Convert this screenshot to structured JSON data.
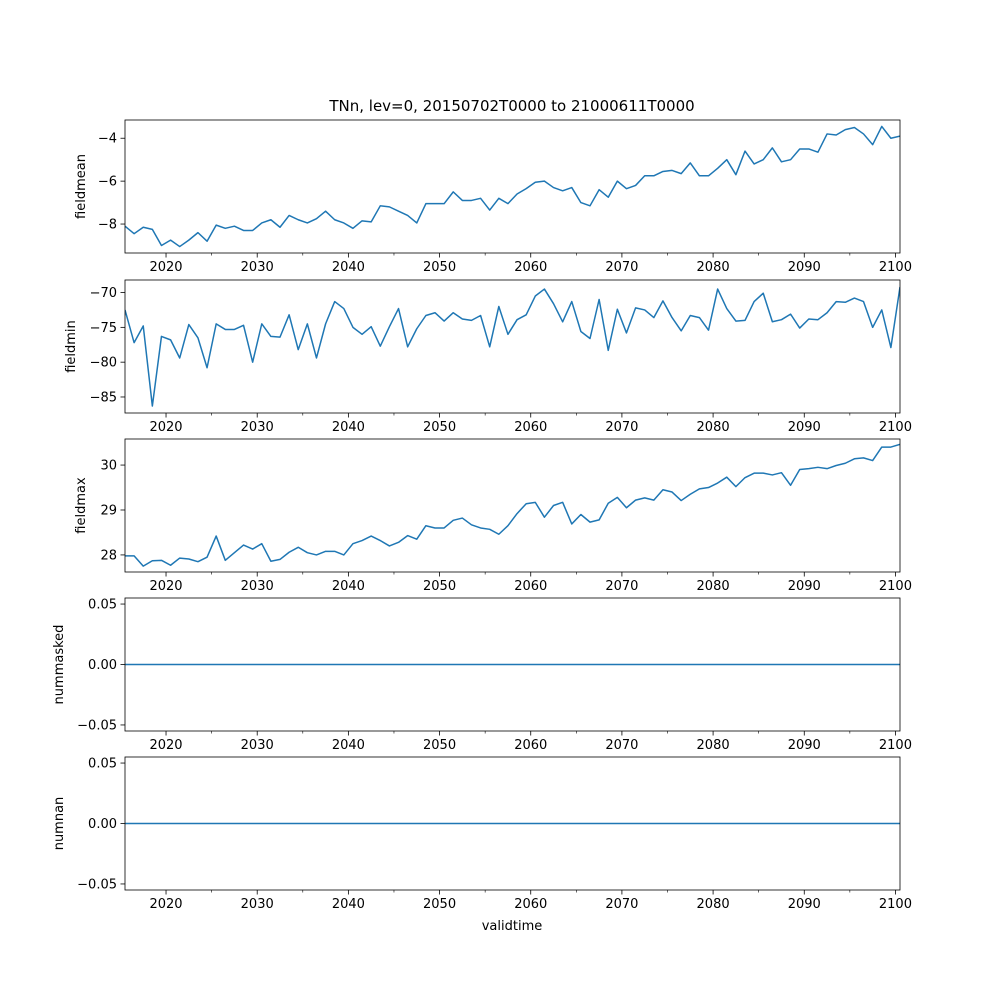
{
  "figure_title": "TNn, lev=0, 20150702T0000 to 21000611T0000",
  "xlabel": "validtime",
  "chart_data": [
    {
      "type": "line",
      "name": "fieldmean",
      "ylabel": "fieldmean",
      "color": "#1f77b4",
      "xlim": [
        2015.5,
        2100.5
      ],
      "ylim": [
        -9.35,
        -3.15
      ],
      "xticks": [
        2020,
        2030,
        2040,
        2050,
        2060,
        2070,
        2080,
        2090,
        2100
      ],
      "xticklabels": [
        "2020",
        "2030",
        "2040",
        "2050",
        "2060",
        "2070",
        "2080",
        "2090",
        "2100"
      ],
      "yticks": [
        -8,
        -6,
        -4
      ],
      "yticklabels": [
        "−8",
        "−6",
        "−4"
      ],
      "x": [
        2015.5,
        2016.5,
        2017.5,
        2018.5,
        2019.5,
        2020.5,
        2021.5,
        2022.5,
        2023.5,
        2024.5,
        2025.5,
        2026.5,
        2027.5,
        2028.5,
        2029.5,
        2030.5,
        2031.5,
        2032.5,
        2033.5,
        2034.5,
        2035.5,
        2036.5,
        2037.5,
        2038.5,
        2039.5,
        2040.5,
        2041.5,
        2042.5,
        2043.5,
        2044.5,
        2045.5,
        2046.5,
        2047.5,
        2048.5,
        2049.5,
        2050.5,
        2051.5,
        2052.5,
        2053.5,
        2054.5,
        2055.5,
        2056.5,
        2057.5,
        2058.5,
        2059.5,
        2060.5,
        2061.5,
        2062.5,
        2063.5,
        2064.5,
        2065.5,
        2066.5,
        2067.5,
        2068.5,
        2069.5,
        2070.5,
        2071.5,
        2072.5,
        2073.5,
        2074.5,
        2075.5,
        2076.5,
        2077.5,
        2078.5,
        2079.5,
        2080.5,
        2081.5,
        2082.5,
        2083.5,
        2084.5,
        2085.5,
        2086.5,
        2087.5,
        2088.5,
        2089.5,
        2090.5,
        2091.5,
        2092.5,
        2093.5,
        2094.5,
        2095.5,
        2096.5,
        2097.5,
        2098.5,
        2099.5,
        2100.5
      ],
      "values": [
        -8.1,
        -8.45,
        -8.15,
        -8.25,
        -9.0,
        -8.75,
        -9.05,
        -8.75,
        -8.4,
        -8.8,
        -8.05,
        -8.2,
        -8.1,
        -8.3,
        -8.3,
        -7.95,
        -7.8,
        -8.15,
        -7.6,
        -7.8,
        -7.95,
        -7.75,
        -7.4,
        -7.8,
        -7.95,
        -8.2,
        -7.85,
        -7.9,
        -7.15,
        -7.2,
        -7.4,
        -7.6,
        -7.95,
        -7.05,
        -7.05,
        -7.05,
        -6.5,
        -6.9,
        -6.9,
        -6.8,
        -7.35,
        -6.8,
        -7.05,
        -6.6,
        -6.35,
        -6.05,
        -6.0,
        -6.3,
        -6.45,
        -6.3,
        -7.0,
        -7.15,
        -6.4,
        -6.75,
        -6.0,
        -6.35,
        -6.2,
        -5.75,
        -5.75,
        -5.55,
        -5.5,
        -5.65,
        -5.15,
        -5.75,
        -5.75,
        -5.4,
        -5.0,
        -5.7,
        -4.6,
        -5.2,
        -5.0,
        -4.45,
        -5.1,
        -5.0,
        -4.5,
        -4.5,
        -4.65,
        -3.8,
        -3.85,
        -3.6,
        -3.5,
        -3.8,
        -4.3,
        -3.45,
        -4.0,
        -3.9
      ]
    },
    {
      "type": "line",
      "name": "fieldmin",
      "ylabel": "fieldmin",
      "color": "#1f77b4",
      "xlim": [
        2015.5,
        2100.5
      ],
      "ylim": [
        -87.3,
        -68.2
      ],
      "xticks": [
        2020,
        2030,
        2040,
        2050,
        2060,
        2070,
        2080,
        2090,
        2100
      ],
      "xticklabels": [
        "2020",
        "2030",
        "2040",
        "2050",
        "2060",
        "2070",
        "2080",
        "2090",
        "2100"
      ],
      "yticks": [
        -85,
        -80,
        -75,
        -70
      ],
      "yticklabels": [
        "−85",
        "−80",
        "−75",
        "−70"
      ],
      "x": [
        2015.5,
        2016.5,
        2017.5,
        2018.5,
        2019.5,
        2020.5,
        2021.5,
        2022.5,
        2023.5,
        2024.5,
        2025.5,
        2026.5,
        2027.5,
        2028.5,
        2029.5,
        2030.5,
        2031.5,
        2032.5,
        2033.5,
        2034.5,
        2035.5,
        2036.5,
        2037.5,
        2038.5,
        2039.5,
        2040.5,
        2041.5,
        2042.5,
        2043.5,
        2044.5,
        2045.5,
        2046.5,
        2047.5,
        2048.5,
        2049.5,
        2050.5,
        2051.5,
        2052.5,
        2053.5,
        2054.5,
        2055.5,
        2056.5,
        2057.5,
        2058.5,
        2059.5,
        2060.5,
        2061.5,
        2062.5,
        2063.5,
        2064.5,
        2065.5,
        2066.5,
        2067.5,
        2068.5,
        2069.5,
        2070.5,
        2071.5,
        2072.5,
        2073.5,
        2074.5,
        2075.5,
        2076.5,
        2077.5,
        2078.5,
        2079.5,
        2080.5,
        2081.5,
        2082.5,
        2083.5,
        2084.5,
        2085.5,
        2086.5,
        2087.5,
        2088.5,
        2089.5,
        2090.5,
        2091.5,
        2092.5,
        2093.5,
        2094.5,
        2095.5,
        2096.5,
        2097.5,
        2098.5,
        2099.5,
        2100.5
      ],
      "values": [
        -72.5,
        -77.2,
        -74.8,
        -86.3,
        -76.3,
        -76.8,
        -79.4,
        -74.6,
        -76.5,
        -80.8,
        -74.5,
        -75.3,
        -75.3,
        -74.7,
        -80.0,
        -74.5,
        -76.3,
        -76.4,
        -73.2,
        -78.2,
        -74.5,
        -79.4,
        -74.5,
        -71.3,
        -72.3,
        -75.0,
        -76.0,
        -74.9,
        -77.7,
        -74.9,
        -72.3,
        -77.8,
        -75.2,
        -73.3,
        -72.9,
        -74.1,
        -72.9,
        -73.8,
        -74.0,
        -73.3,
        -77.8,
        -72.0,
        -76.0,
        -73.9,
        -73.2,
        -70.5,
        -69.5,
        -71.6,
        -74.2,
        -71.3,
        -75.6,
        -76.6,
        -71.0,
        -78.3,
        -72.4,
        -75.8,
        -72.2,
        -72.5,
        -73.6,
        -71.2,
        -73.6,
        -75.5,
        -73.3,
        -73.6,
        -75.4,
        -69.5,
        -72.3,
        -74.1,
        -74.0,
        -71.3,
        -70.1,
        -74.2,
        -73.9,
        -73.1,
        -75.1,
        -73.8,
        -73.9,
        -72.9,
        -71.3,
        -71.4,
        -70.8,
        -71.3,
        -75.0,
        -72.5,
        -77.9,
        -69.2
      ]
    },
    {
      "type": "line",
      "name": "fieldmax",
      "ylabel": "fieldmax",
      "color": "#1f77b4",
      "xlim": [
        2015.5,
        2100.5
      ],
      "ylim": [
        27.62,
        30.58
      ],
      "xticks": [
        2020,
        2030,
        2040,
        2050,
        2060,
        2070,
        2080,
        2090,
        2100
      ],
      "xticklabels": [
        "2020",
        "2030",
        "2040",
        "2050",
        "2060",
        "2070",
        "2080",
        "2090",
        "2100"
      ],
      "yticks": [
        28,
        29,
        30
      ],
      "yticklabels": [
        "28",
        "29",
        "30"
      ],
      "x": [
        2015.5,
        2016.5,
        2017.5,
        2018.5,
        2019.5,
        2020.5,
        2021.5,
        2022.5,
        2023.5,
        2024.5,
        2025.5,
        2026.5,
        2027.5,
        2028.5,
        2029.5,
        2030.5,
        2031.5,
        2032.5,
        2033.5,
        2034.5,
        2035.5,
        2036.5,
        2037.5,
        2038.5,
        2039.5,
        2040.5,
        2041.5,
        2042.5,
        2043.5,
        2044.5,
        2045.5,
        2046.5,
        2047.5,
        2048.5,
        2049.5,
        2050.5,
        2051.5,
        2052.5,
        2053.5,
        2054.5,
        2055.5,
        2056.5,
        2057.5,
        2058.5,
        2059.5,
        2060.5,
        2061.5,
        2062.5,
        2063.5,
        2064.5,
        2065.5,
        2066.5,
        2067.5,
        2068.5,
        2069.5,
        2070.5,
        2071.5,
        2072.5,
        2073.5,
        2074.5,
        2075.5,
        2076.5,
        2077.5,
        2078.5,
        2079.5,
        2080.5,
        2081.5,
        2082.5,
        2083.5,
        2084.5,
        2085.5,
        2086.5,
        2087.5,
        2088.5,
        2089.5,
        2090.5,
        2091.5,
        2092.5,
        2093.5,
        2094.5,
        2095.5,
        2096.5,
        2097.5,
        2098.5,
        2099.5,
        2100.5
      ],
      "values": [
        27.98,
        27.98,
        27.75,
        27.87,
        27.88,
        27.77,
        27.93,
        27.91,
        27.85,
        27.95,
        28.42,
        27.88,
        28.05,
        28.22,
        28.13,
        28.25,
        27.86,
        27.9,
        28.06,
        28.17,
        28.05,
        28.0,
        28.08,
        28.08,
        28.0,
        28.25,
        28.32,
        28.42,
        28.32,
        28.2,
        28.28,
        28.43,
        28.35,
        28.65,
        28.6,
        28.6,
        28.77,
        28.82,
        28.67,
        28.6,
        28.57,
        28.46,
        28.65,
        28.92,
        29.14,
        29.17,
        28.84,
        29.1,
        29.17,
        28.69,
        28.9,
        28.73,
        28.78,
        29.15,
        29.28,
        29.05,
        29.22,
        29.27,
        29.22,
        29.45,
        29.4,
        29.21,
        29.35,
        29.47,
        29.5,
        29.6,
        29.73,
        29.52,
        29.72,
        29.82,
        29.82,
        29.78,
        29.83,
        29.55,
        29.9,
        29.92,
        29.95,
        29.92,
        29.99,
        30.04,
        30.14,
        30.16,
        30.1,
        30.4,
        30.4,
        30.46
      ]
    },
    {
      "type": "line",
      "name": "nummasked",
      "ylabel": "nummasked",
      "color": "#1f77b4",
      "xlim": [
        2015.5,
        2100.5
      ],
      "ylim": [
        -0.055,
        0.055
      ],
      "xticks": [
        2020,
        2030,
        2040,
        2050,
        2060,
        2070,
        2080,
        2090,
        2100
      ],
      "xticklabels": [
        "2020",
        "2030",
        "2040",
        "2050",
        "2060",
        "2070",
        "2080",
        "2090",
        "2100"
      ],
      "yticks": [
        -0.05,
        0.0,
        0.05
      ],
      "yticklabels": [
        "−0.05",
        "0.00",
        "0.05"
      ],
      "x": [
        2015.5,
        2100.5
      ],
      "values": [
        0,
        0
      ]
    },
    {
      "type": "line",
      "name": "numnan",
      "ylabel": "numnan",
      "color": "#1f77b4",
      "xlim": [
        2015.5,
        2100.5
      ],
      "ylim": [
        -0.055,
        0.055
      ],
      "xticks": [
        2020,
        2030,
        2040,
        2050,
        2060,
        2070,
        2080,
        2090,
        2100
      ],
      "xticklabels": [
        "2020",
        "2030",
        "2040",
        "2050",
        "2060",
        "2070",
        "2080",
        "2090",
        "2100"
      ],
      "yticks": [
        -0.05,
        0.0,
        0.05
      ],
      "yticklabels": [
        "−0.05",
        "0.00",
        "0.05"
      ],
      "x": [
        2015.5,
        2100.5
      ],
      "values": [
        0,
        0
      ]
    }
  ]
}
